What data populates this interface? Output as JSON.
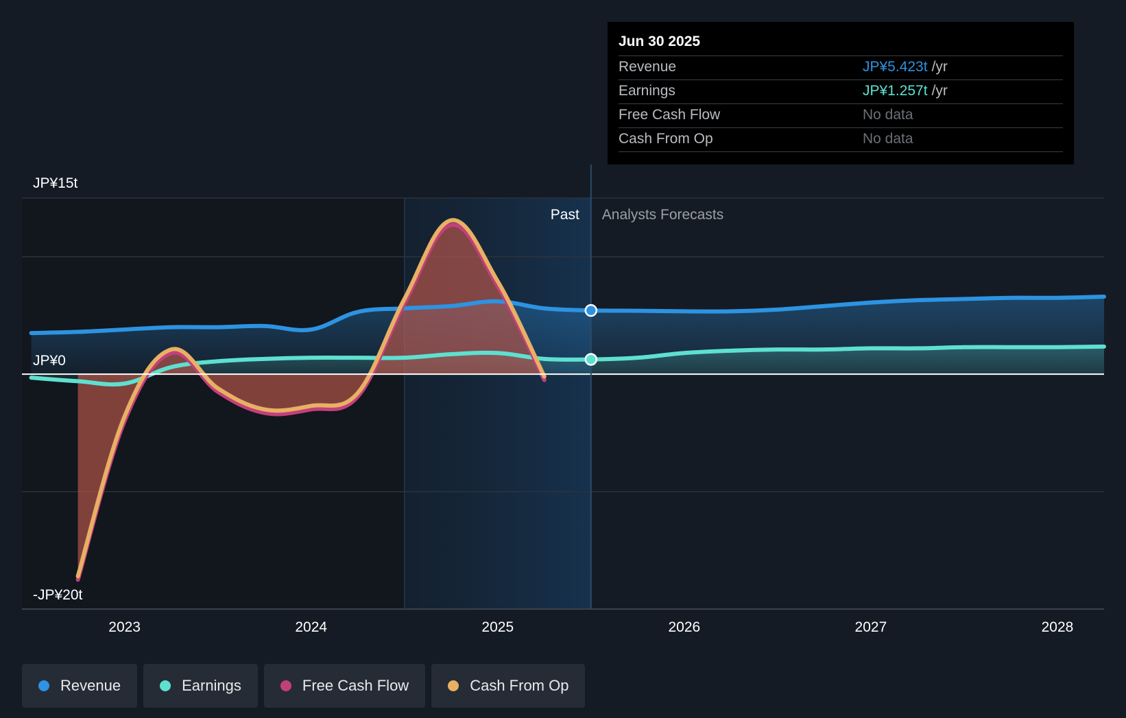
{
  "colors": {
    "background": "#151b24",
    "revenue": "#2d93e2",
    "earnings": "#5ee0d0",
    "free_cash_flow": "#c2407a",
    "cash_from_op": "#e8b064",
    "grid": "#2c333d",
    "past_band": "#1a2f44"
  },
  "tooltip": {
    "date": "Jun 30 2025",
    "rows": [
      {
        "label": "Revenue",
        "value": "JP¥5.423t",
        "unit": "/yr",
        "color": "#2d93e2"
      },
      {
        "label": "Earnings",
        "value": "JP¥1.257t",
        "unit": "/yr",
        "color": "#5ee0d0"
      },
      {
        "label": "Free Cash Flow",
        "value": "No data",
        "unit": ""
      },
      {
        "label": "Cash From Op",
        "value": "No data",
        "unit": ""
      }
    ]
  },
  "labels": {
    "past": "Past",
    "forecast": "Analysts Forecasts"
  },
  "legend": [
    {
      "label": "Revenue",
      "color": "#2d93e2"
    },
    {
      "label": "Earnings",
      "color": "#5ee0d0"
    },
    {
      "label": "Free Cash Flow",
      "color": "#c2407a"
    },
    {
      "label": "Cash From Op",
      "color": "#e8b064"
    }
  ],
  "chart_data": {
    "type": "line",
    "title": "",
    "xlabel": "",
    "ylabel": "",
    "xlim": [
      2022.45,
      2028.25
    ],
    "ylim": [
      -20,
      15
    ],
    "y_ticks": [
      {
        "value": 15,
        "label": "JP¥15t"
      },
      {
        "value": 0,
        "label": "JP¥0"
      },
      {
        "value": -20,
        "label": "-JP¥20t"
      }
    ],
    "grid_values": [
      15,
      10,
      0,
      -10,
      -20
    ],
    "x_ticks": [
      {
        "value": 2023,
        "label": "2023"
      },
      {
        "value": 2024,
        "label": "2024"
      },
      {
        "value": 2025,
        "label": "2025"
      },
      {
        "value": 2026,
        "label": "2026"
      },
      {
        "value": 2027,
        "label": "2027"
      },
      {
        "value": 2028,
        "label": "2028"
      }
    ],
    "past_band_start": 2024.5,
    "forecast_start": 2025.5,
    "series": [
      {
        "name": "Revenue",
        "x": [
          2022.5,
          2022.75,
          2023.0,
          2023.25,
          2023.5,
          2023.75,
          2024.0,
          2024.25,
          2024.5,
          2024.75,
          2025.0,
          2025.25,
          2025.5,
          2025.75,
          2026.0,
          2026.25,
          2026.5,
          2026.75,
          2027.0,
          2027.25,
          2027.5,
          2027.75,
          2028.0,
          2028.25
        ],
        "values": [
          3.5,
          3.6,
          3.8,
          4.0,
          4.0,
          4.1,
          3.8,
          5.3,
          5.6,
          5.8,
          6.2,
          5.6,
          5.423,
          5.4,
          5.35,
          5.35,
          5.5,
          5.8,
          6.1,
          6.3,
          6.4,
          6.5,
          6.5,
          6.6
        ]
      },
      {
        "name": "Earnings",
        "x": [
          2022.5,
          2022.75,
          2023.0,
          2023.25,
          2023.5,
          2023.75,
          2024.0,
          2024.25,
          2024.5,
          2024.75,
          2025.0,
          2025.25,
          2025.5,
          2025.75,
          2026.0,
          2026.25,
          2026.5,
          2026.75,
          2027.0,
          2027.25,
          2027.5,
          2027.75,
          2028.0,
          2028.25
        ],
        "values": [
          -0.3,
          -0.6,
          -0.8,
          0.6,
          1.1,
          1.3,
          1.4,
          1.4,
          1.4,
          1.7,
          1.8,
          1.3,
          1.257,
          1.4,
          1.8,
          2.0,
          2.1,
          2.1,
          2.2,
          2.2,
          2.3,
          2.3,
          2.3,
          2.35
        ]
      },
      {
        "name": "Free Cash Flow",
        "x": [
          2022.75,
          2023.0,
          2023.25,
          2023.5,
          2023.75,
          2024.0,
          2024.25,
          2024.5,
          2024.75,
          2025.0,
          2025.25
        ],
        "values": [
          -17.5,
          -4.0,
          1.8,
          -1.5,
          -3.3,
          -3.0,
          -1.9,
          6.0,
          12.7,
          7.5,
          -0.5
        ]
      },
      {
        "name": "Cash From Op",
        "x": [
          2022.75,
          2023.0,
          2023.25,
          2023.5,
          2023.75,
          2024.0,
          2024.25,
          2024.5,
          2024.75,
          2025.0,
          2025.25
        ],
        "values": [
          -17.2,
          -3.6,
          2.1,
          -1.2,
          -3.0,
          -2.7,
          -1.6,
          6.4,
          13.1,
          7.9,
          -0.2
        ]
      }
    ],
    "highlight_points": [
      {
        "series": "Revenue",
        "x": 2025.5,
        "value": 5.423
      },
      {
        "series": "Earnings",
        "x": 2025.5,
        "value": 1.257
      }
    ]
  }
}
